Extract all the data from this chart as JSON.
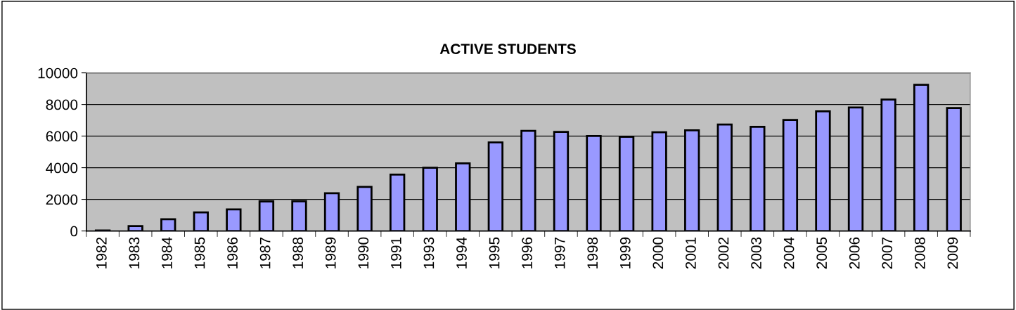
{
  "chart_data": {
    "type": "bar",
    "title": "ACTIVE STUDENTS",
    "categories": [
      "1982",
      "1983",
      "1984",
      "1985",
      "1986",
      "1987",
      "1988",
      "1989",
      "1990",
      "1991",
      "1993",
      "1994",
      "1995",
      "1996",
      "1997",
      "1998",
      "1999",
      "2000",
      "2001",
      "2002",
      "2003",
      "2004",
      "2005",
      "2006",
      "2007",
      "2008",
      "2009"
    ],
    "values": [
      30,
      310,
      740,
      1170,
      1360,
      1870,
      1880,
      2390,
      2790,
      3560,
      4000,
      4280,
      5600,
      6330,
      6270,
      6010,
      5960,
      6240,
      6370,
      6730,
      6590,
      7020,
      7570,
      7810,
      8310,
      9240,
      7780
    ],
    "color": "#9999ff",
    "ylim": [
      0,
      10000
    ],
    "yticks": [
      0,
      2000,
      4000,
      6000,
      8000,
      10000
    ],
    "grid": "y",
    "legend": false
  }
}
